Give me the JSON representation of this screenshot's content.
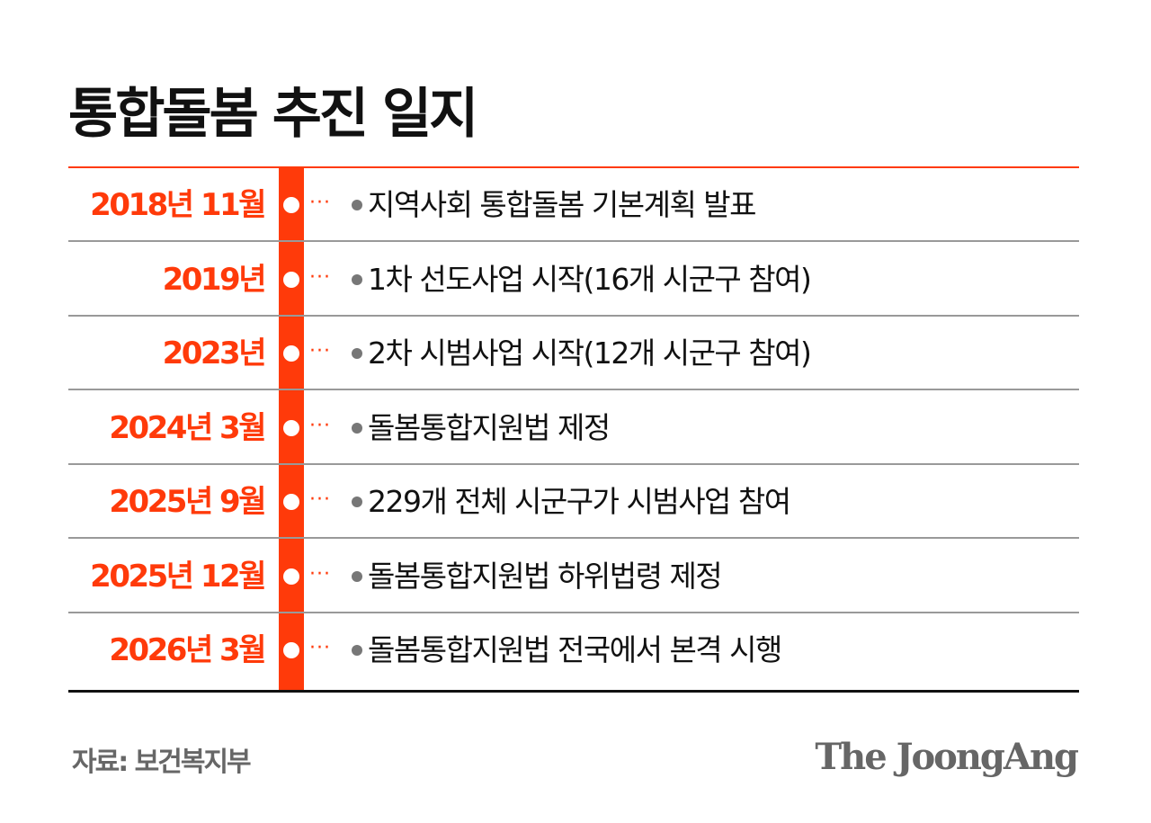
{
  "title": "통합돌봄 추진 일지",
  "colors": {
    "accent": "#ff3a0a",
    "text": "#111111",
    "bullet": "#777777",
    "separator": "#999999"
  },
  "timeline": [
    {
      "date": "2018년 11월",
      "event": "지역사회 통합돌봄 기본계획 발표"
    },
    {
      "date": "2019년",
      "event": "1차 선도사업 시작(16개 시군구 참여)"
    },
    {
      "date": "2023년",
      "event": "2차 시범사업 시작(12개 시군구 참여)"
    },
    {
      "date": "2024년 3월",
      "event": "돌봄통합지원법 제정"
    },
    {
      "date": "2025년 9월",
      "event": "229개 전체 시군구가 시범사업 참여"
    },
    {
      "date": "2025년 12월",
      "event": "돌봄통합지원법 하위법령 제정"
    },
    {
      "date": "2026년 3월",
      "event": "돌봄통합지원법 전국에서 본격 시행"
    }
  ],
  "connector": "···",
  "source": "자료: 보건복지부",
  "logo": "The JoongAng"
}
